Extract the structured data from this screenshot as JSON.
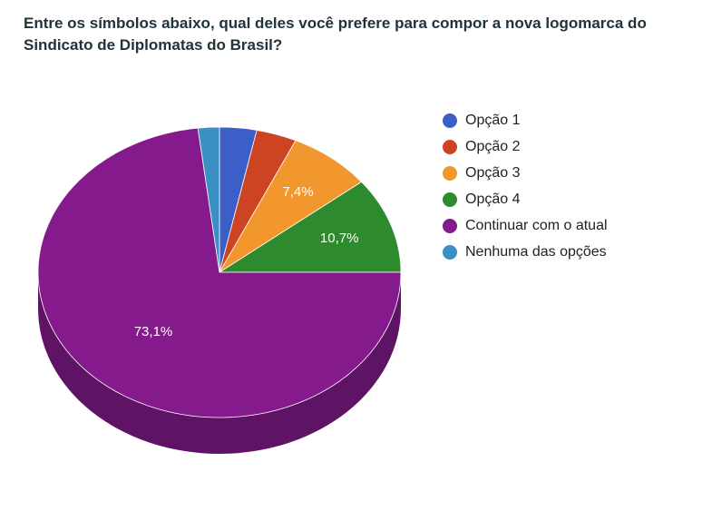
{
  "title": "Entre os símbolos abaixo, qual deles você prefere para compor a nova logomarca do Sindicato de Diplomatas do Brasil?",
  "chart_data": {
    "type": "pie",
    "style": "3d",
    "legend_position": "right",
    "slices": [
      {
        "name": "Opção 1",
        "value": 3.3,
        "color": "#3c5ec9",
        "label": ""
      },
      {
        "name": "Opção 2",
        "value": 3.6,
        "color": "#cc4422",
        "label": ""
      },
      {
        "name": "Opção 3",
        "value": 7.4,
        "color": "#f2962e",
        "label": "7,4%"
      },
      {
        "name": "Opção 4",
        "value": 10.7,
        "color": "#2d8a2d",
        "label": "10,7%"
      },
      {
        "name": "Continuar com o atual",
        "value": 73.1,
        "color": "#841a8c",
        "label": "73,1%"
      },
      {
        "name": "Nenhuma das opções",
        "value": 1.9,
        "color": "#3a8fc5",
        "label": ""
      }
    ]
  }
}
